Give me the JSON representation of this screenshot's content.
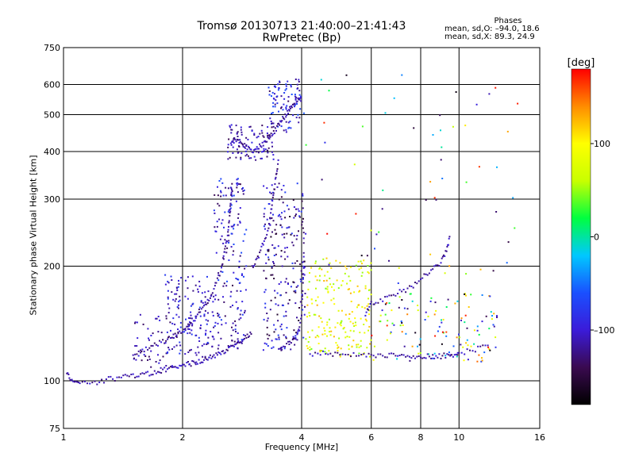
{
  "title": {
    "line1": "Tromsø 20130713 21:40:00–21:41:43",
    "line2": "RwPretec (Bp)"
  },
  "stats": {
    "header": "Phases",
    "o_line": "mean, sd,O: –94.0, 18.6",
    "x_line": "mean, sd,X:  89.3, 24.9"
  },
  "colors": {
    "background": "#ffffff",
    "axes": "#000000"
  },
  "colorbar": {
    "label": "[deg]",
    "range": [
      -180,
      180
    ],
    "ticks": [
      "100",
      "0",
      "–100"
    ],
    "tick_values": [
      100,
      0,
      -100
    ],
    "colormap": [
      "#000000",
      "#3a0a50",
      "#3b1bd9",
      "#1a50ff",
      "#00c8ff",
      "#00ff40",
      "#c8ff00",
      "#ffff00",
      "#ff8c00",
      "#ff0000"
    ]
  },
  "chart_data": {
    "type": "scatter",
    "title": "Tromsø 20130713 21:40:00–21:41:43",
    "subtitle": "RwPretec (Bp)",
    "xlabel": "Frequency [MHz]",
    "ylabel": "Stationary phase Virtual Height [km]",
    "xscale": "log",
    "yscale": "log",
    "xlim": [
      1,
      16
    ],
    "ylim": [
      75,
      750
    ],
    "xticks": [
      1,
      2,
      4,
      6,
      8,
      10,
      16
    ],
    "yticks": [
      75,
      100,
      200,
      300,
      400,
      500,
      600,
      750
    ],
    "grid": true,
    "trace_series": [
      {
        "name": "",
        "points": [
          [
            1.02,
            104
          ],
          [
            1.05,
            101
          ],
          [
            1.1,
            99
          ],
          [
            1.2,
            99
          ],
          [
            1.3,
            101
          ],
          [
            1.4,
            102
          ],
          [
            1.5,
            103
          ],
          [
            1.6,
            104
          ],
          [
            1.7,
            105
          ],
          [
            1.8,
            107
          ],
          [
            1.9,
            108
          ],
          [
            2.0,
            110
          ],
          [
            2.1,
            111
          ],
          [
            2.2,
            112
          ],
          [
            2.3,
            114
          ],
          [
            2.4,
            116
          ],
          [
            2.5,
            118
          ],
          [
            2.6,
            121
          ],
          [
            2.7,
            124
          ],
          [
            2.8,
            127
          ],
          [
            2.9,
            130
          ],
          [
            3.0,
            134
          ]
        ]
      },
      {
        "name": "",
        "points": [
          [
            1.5,
            118
          ],
          [
            1.6,
            121
          ],
          [
            1.7,
            124
          ],
          [
            1.8,
            127
          ],
          [
            1.9,
            131
          ],
          [
            2.0,
            135
          ],
          [
            2.1,
            140
          ],
          [
            2.2,
            150
          ],
          [
            2.3,
            160
          ],
          [
            2.4,
            175
          ],
          [
            2.5,
            195
          ],
          [
            2.55,
            215
          ],
          [
            2.6,
            240
          ],
          [
            2.63,
            270
          ],
          [
            2.65,
            300
          ],
          [
            2.67,
            330
          ]
        ]
      },
      {
        "name": "",
        "points": [
          [
            2.65,
            420
          ],
          [
            2.7,
            430
          ],
          [
            2.8,
            425
          ],
          [
            2.9,
            410
          ],
          [
            3.0,
            400
          ],
          [
            3.1,
            410
          ],
          [
            3.2,
            420
          ],
          [
            3.3,
            435
          ],
          [
            3.4,
            450
          ],
          [
            3.5,
            470
          ],
          [
            3.6,
            490
          ],
          [
            3.7,
            510
          ],
          [
            3.8,
            530
          ],
          [
            3.9,
            550
          ],
          [
            4.0,
            560
          ]
        ]
      },
      {
        "name": "",
        "points": [
          [
            3.0,
            200
          ],
          [
            3.1,
            210
          ],
          [
            3.2,
            230
          ],
          [
            3.3,
            250
          ],
          [
            3.35,
            280
          ],
          [
            3.4,
            310
          ],
          [
            3.45,
            350
          ],
          [
            3.5,
            380
          ]
        ]
      },
      {
        "name": "",
        "points": [
          [
            4.2,
            118
          ],
          [
            4.6,
            118
          ],
          [
            5.0,
            117
          ],
          [
            5.5,
            117
          ],
          [
            6.0,
            117
          ],
          [
            6.5,
            117
          ],
          [
            7.0,
            116
          ],
          [
            7.5,
            116
          ],
          [
            8.0,
            116
          ],
          [
            8.5,
            116
          ],
          [
            9.0,
            116
          ],
          [
            9.5,
            117
          ],
          [
            10.0,
            118
          ],
          [
            11.0,
            121
          ],
          [
            12.0,
            124
          ]
        ]
      },
      {
        "name": "",
        "points": [
          [
            3.5,
            120
          ],
          [
            3.7,
            125
          ],
          [
            3.9,
            130
          ],
          [
            4.0,
            150
          ],
          [
            4.05,
            200
          ],
          [
            4.05,
            260
          ]
        ]
      },
      {
        "name": "",
        "points": [
          [
            5.8,
            150
          ],
          [
            6.0,
            160
          ],
          [
            6.5,
            165
          ],
          [
            7.0,
            170
          ],
          [
            7.5,
            175
          ],
          [
            8.0,
            185
          ],
          [
            8.5,
            195
          ],
          [
            9.0,
            205
          ],
          [
            9.3,
            220
          ],
          [
            9.5,
            240
          ]
        ]
      }
    ],
    "scatter_clusters": [
      {
        "name": "",
        "x_range": [
          1.8,
          2.4
        ],
        "y_range": [
          115,
          190
        ],
        "count": 140,
        "phase_range": [
          -130,
          -70
        ]
      },
      {
        "name": "",
        "x_range": [
          2.4,
          2.9
        ],
        "y_range": [
          120,
          340
        ],
        "count": 170,
        "phase_range": [
          -140,
          -60
        ]
      },
      {
        "name": "",
        "x_range": [
          2.6,
          3.4
        ],
        "y_range": [
          380,
          470
        ],
        "count": 90,
        "phase_range": [
          -140,
          -90
        ]
      },
      {
        "name": "",
        "x_range": [
          3.2,
          4.1
        ],
        "y_range": [
          120,
          330
        ],
        "count": 230,
        "phase_range": [
          -160,
          -70
        ]
      },
      {
        "name": "",
        "x_range": [
          3.3,
          4.0
        ],
        "y_range": [
          450,
          620
        ],
        "count": 90,
        "phase_range": [
          -140,
          -60
        ]
      },
      {
        "name": "",
        "x_range": [
          4.1,
          6.0
        ],
        "y_range": [
          115,
          210
        ],
        "count": 200,
        "phase_range": [
          40,
          130
        ]
      },
      {
        "name": "",
        "x_range": [
          6.0,
          12.5
        ],
        "y_range": [
          112,
          170
        ],
        "count": 130,
        "phase_range": [
          -180,
          180
        ]
      },
      {
        "name": "",
        "x_range": [
          1.5,
          2.2
        ],
        "y_range": [
          108,
          150
        ],
        "count": 60,
        "phase_range": [
          -140,
          -90
        ]
      },
      {
        "name": "",
        "x_range": [
          4.0,
          15.0
        ],
        "y_range": [
          180,
          650
        ],
        "count": 60,
        "phase_range": [
          -180,
          180
        ]
      }
    ]
  }
}
